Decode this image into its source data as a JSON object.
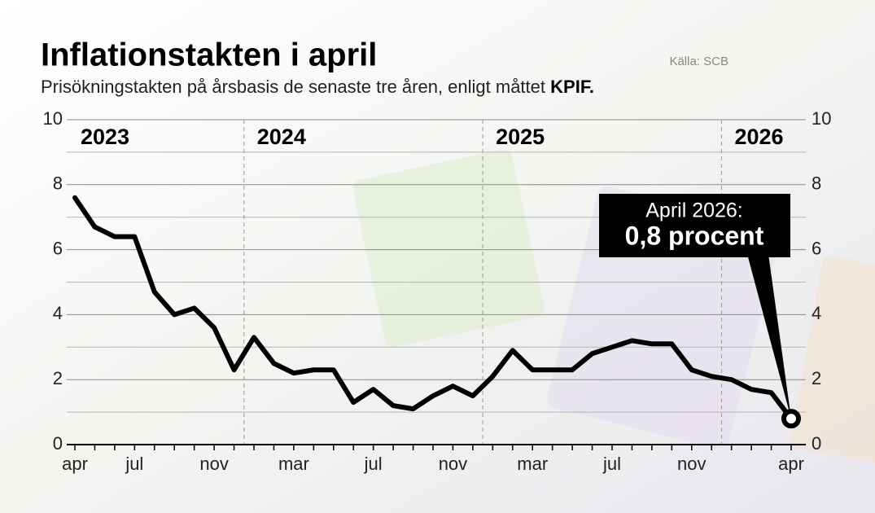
{
  "chart_data": {
    "type": "line",
    "title": "Inflationstakten i april",
    "subtitle": "Prisökningstakten på årsbasis de senaste tre åren, enligt måttet",
    "subtitle_emphasis": "KPIF.",
    "source": "Källa: SCB",
    "years": [
      "2023",
      "2024",
      "2025",
      "2026"
    ],
    "annotation": {
      "line1": "April 2026:",
      "line2": "0,8 procent"
    },
    "categories": [
      "apr",
      null,
      null,
      "jul",
      null,
      null,
      null,
      "nov",
      null,
      null,
      null,
      "mar",
      null,
      null,
      null,
      "jul",
      null,
      null,
      null,
      "nov",
      null,
      null,
      null,
      "mar",
      null,
      null,
      null,
      "jul",
      null,
      null,
      null,
      "nov",
      null,
      null,
      null,
      null,
      "apr"
    ],
    "series": [
      {
        "name": "KPIF",
        "color": "#000000",
        "values": [
          7.6,
          6.7,
          6.4,
          6.4,
          4.7,
          4.0,
          4.2,
          3.6,
          2.3,
          3.3,
          2.5,
          2.2,
          2.3,
          2.3,
          1.3,
          1.7,
          1.2,
          1.1,
          1.5,
          1.8,
          1.5,
          2.1,
          2.9,
          2.3,
          2.3,
          2.3,
          2.8,
          3.0,
          3.2,
          3.1,
          3.1,
          2.3,
          2.1,
          2.0,
          1.7,
          1.6,
          0.8
        ]
      }
    ],
    "ylim": [
      0,
      10
    ],
    "yticks": [
      0,
      2,
      4,
      6,
      8,
      10
    ],
    "minor_yticks": [
      1,
      3,
      5,
      7,
      9
    ],
    "y2lim": [
      0,
      10
    ],
    "y2ticks": [
      0,
      2,
      4,
      6,
      8,
      10
    ],
    "grid": true
  }
}
